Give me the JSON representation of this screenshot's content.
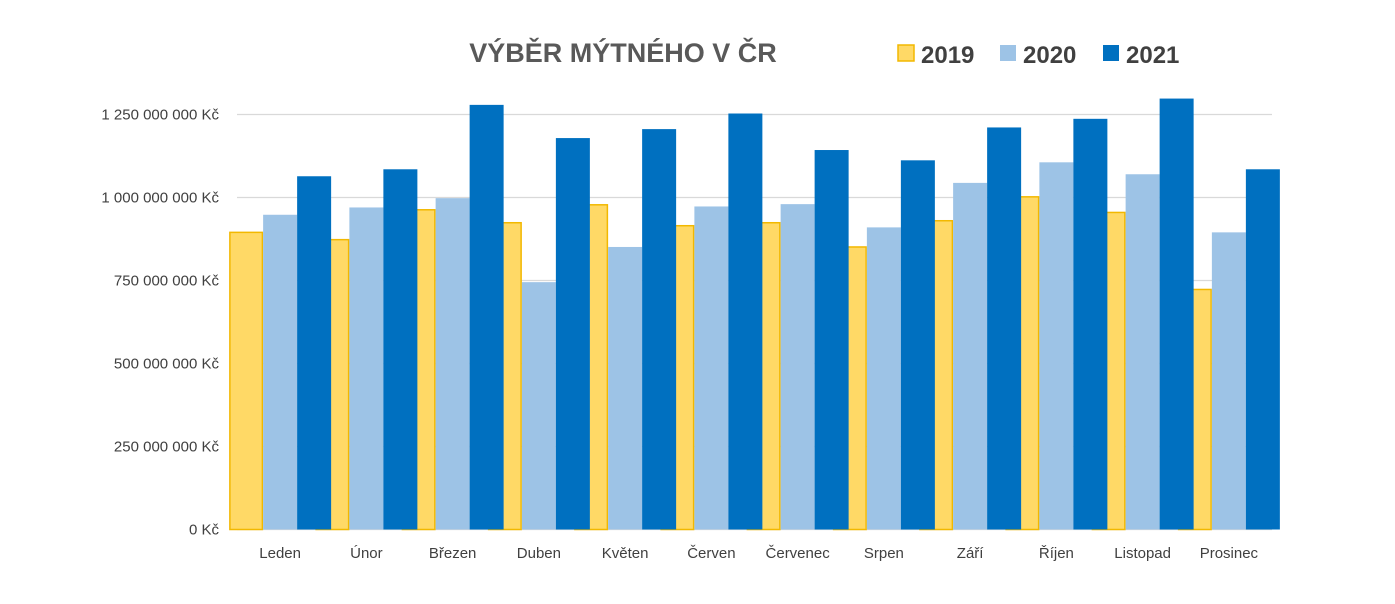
{
  "chart_data": {
    "type": "bar",
    "title": "VÝBĚR MÝTNÉHO V ČR",
    "xlabel": "",
    "ylabel": "",
    "ylim": [
      0,
      1250000000
    ],
    "yticks": [
      0,
      250000000,
      500000000,
      750000000,
      1000000000,
      1250000000
    ],
    "ytick_labels": [
      "0 Kč",
      "250 000 000 Kč",
      "500 000 000 Kč",
      "750 000 000 Kč",
      "1 000 000 000 Kč",
      "1 250 000 000 Kč"
    ],
    "grid": true,
    "legend_position": "top-right",
    "categories": [
      "Leden",
      "Únor",
      "Březen",
      "Duben",
      "Květen",
      "Červen",
      "Červenec",
      "Srpen",
      "Září",
      "Říjen",
      "Listopad",
      "Prosinec"
    ],
    "series": [
      {
        "name": "2019",
        "color": "#FFD966",
        "border": "#F2B800",
        "values": [
          895000000,
          873000000,
          963000000,
          924000000,
          978000000,
          915000000,
          924000000,
          851000000,
          930000000,
          1002000000,
          955000000,
          723000000
        ]
      },
      {
        "name": "2020",
        "color": "#9DC3E6",
        "border": "#9DC3E6",
        "values": [
          948000000,
          970000000,
          998000000,
          745000000,
          851000000,
          973000000,
          980000000,
          910000000,
          1044000000,
          1106000000,
          1070000000,
          895000000
        ]
      },
      {
        "name": "2021",
        "color": "#0070C0",
        "border": "#0070C0",
        "values": [
          1064000000,
          1085000000,
          1279000000,
          1179000000,
          1206000000,
          1253000000,
          1143000000,
          1112000000,
          1211000000,
          1237000000,
          1298000000,
          1085000000
        ]
      }
    ]
  }
}
